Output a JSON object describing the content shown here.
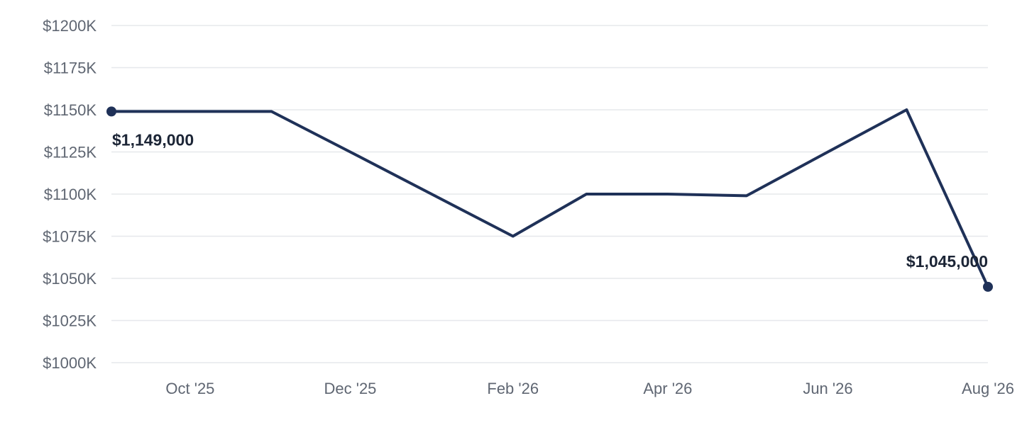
{
  "chart_data": {
    "type": "line",
    "title": "",
    "xlabel": "",
    "ylabel": "",
    "x": [
      "2025-09-01",
      "2025-10-01",
      "2025-11-01",
      "2025-12-01",
      "2026-01-01",
      "2026-02-01",
      "2026-03-01",
      "2026-04-01",
      "2026-05-01",
      "2026-06-01",
      "2026-07-01",
      "2026-08-01"
    ],
    "series": [
      {
        "values": [
          1149000,
          1149000,
          1149000,
          1125000,
          1100000,
          1075000,
          1100000,
          1100000,
          1099000,
          1125000,
          1150000,
          1045000
        ],
        "color": "#1f3158"
      }
    ],
    "ylim": [
      1000000,
      1200000
    ],
    "y_tick_values": [
      1000000,
      1025000,
      1050000,
      1075000,
      1100000,
      1125000,
      1150000,
      1175000,
      1200000
    ],
    "y_tick_labels": [
      "$1000K",
      "$1025K",
      "$1050K",
      "$1075K",
      "$1100K",
      "$1125K",
      "$1150K",
      "$1175K",
      "$1200K"
    ],
    "x_tick_positions": [
      "2025-10-01",
      "2025-12-01",
      "2026-02-01",
      "2026-04-01",
      "2026-06-01",
      "2026-08-01"
    ],
    "x_tick_labels": [
      "Oct '25",
      "Dec '25",
      "Feb '26",
      "Apr '26",
      "Jun '26",
      "Aug '26"
    ],
    "annotations": [
      {
        "point_index": 0,
        "text": "$1,149,000",
        "placement": "below-right"
      },
      {
        "point_index": 11,
        "text": "$1,045,000",
        "placement": "above-left"
      }
    ],
    "grid": true,
    "legend": "none"
  }
}
